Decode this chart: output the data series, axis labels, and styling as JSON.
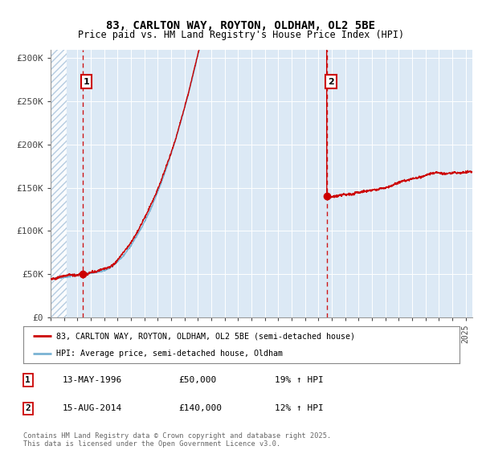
{
  "title1": "83, CARLTON WAY, ROYTON, OLDHAM, OL2 5BE",
  "title2": "Price paid vs. HM Land Registry's House Price Index (HPI)",
  "bg_color": "#dce9f5",
  "hatch_color": "#aac4dc",
  "red_line_color": "#cc0000",
  "blue_line_color": "#7ab3d4",
  "marker1_x": 1996.37,
  "marker1_y": 50000,
  "marker2_x": 2014.62,
  "marker2_y": 140000,
  "xmin": 1994.0,
  "xmax": 2025.5,
  "ymin": 0,
  "ymax": 310000,
  "yticks": [
    0,
    50000,
    100000,
    150000,
    200000,
    250000,
    300000
  ],
  "ytick_labels": [
    "£0",
    "£50K",
    "£100K",
    "£150K",
    "£200K",
    "£250K",
    "£300K"
  ],
  "legend_label1": "83, CARLTON WAY, ROYTON, OLDHAM, OL2 5BE (semi-detached house)",
  "legend_label2": "HPI: Average price, semi-detached house, Oldham",
  "ann1_date": "13-MAY-1996",
  "ann1_price": "£50,000",
  "ann1_hpi": "19% ↑ HPI",
  "ann2_date": "15-AUG-2014",
  "ann2_price": "£140,000",
  "ann2_hpi": "12% ↑ HPI",
  "footer": "Contains HM Land Registry data © Crown copyright and database right 2025.\nThis data is licensed under the Open Government Licence v3.0.",
  "hatch_xmax": 1995.2
}
